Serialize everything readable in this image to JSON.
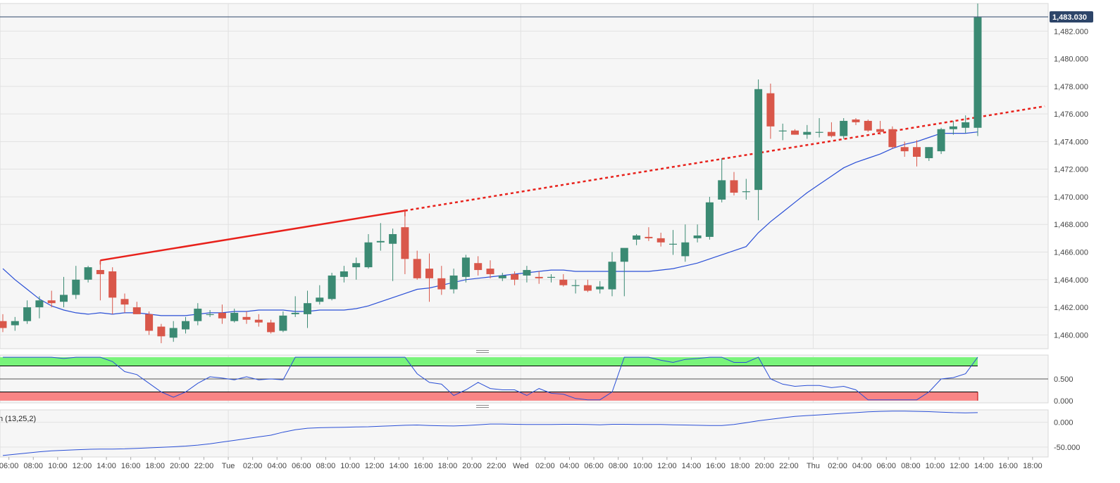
{
  "chart_data": [
    {
      "type": "candlestick",
      "panel": "price",
      "ylim": [
        1459,
        1484
      ],
      "y_ticks": [
        1460,
        1462,
        1464,
        1466,
        1468,
        1470,
        1472,
        1474,
        1476,
        1478,
        1480,
        1482
      ],
      "y_tick_labels": [
        "1,460.000",
        "1,462.000",
        "1,464.000",
        "1,466.000",
        "1,468.000",
        "1,470.000",
        "1,472.000",
        "1,474.000",
        "1,476.000",
        "1,478.000",
        "1,480.000",
        "1,482.000"
      ],
      "current_price": 1483.03,
      "current_price_label": "1,483.030",
      "grid": true,
      "candles": [
        {
          "t": 0,
          "o": 1461.0,
          "h": 1461.5,
          "l": 1460.2,
          "c": 1460.5
        },
        {
          "t": 1,
          "o": 1460.7,
          "h": 1461.3,
          "l": 1460.3,
          "c": 1461.0
        },
        {
          "t": 2,
          "o": 1461.0,
          "h": 1462.5,
          "l": 1460.8,
          "c": 1462.0
        },
        {
          "t": 3,
          "o": 1462.0,
          "h": 1462.8,
          "l": 1461.2,
          "c": 1462.5
        },
        {
          "t": 4,
          "o": 1462.5,
          "h": 1463.2,
          "l": 1462.0,
          "c": 1462.3
        },
        {
          "t": 5,
          "o": 1462.4,
          "h": 1464.2,
          "l": 1462.0,
          "c": 1462.9
        },
        {
          "t": 6,
          "o": 1462.9,
          "h": 1465.0,
          "l": 1462.6,
          "c": 1464.0
        },
        {
          "t": 7,
          "o": 1464.0,
          "h": 1465.0,
          "l": 1463.8,
          "c": 1464.9
        },
        {
          "t": 8,
          "o": 1464.7,
          "h": 1465.4,
          "l": 1462.5,
          "c": 1464.4
        },
        {
          "t": 9,
          "o": 1464.6,
          "h": 1464.9,
          "l": 1461.5,
          "c": 1462.7
        },
        {
          "t": 10,
          "o": 1462.6,
          "h": 1463.0,
          "l": 1461.6,
          "c": 1462.2
        },
        {
          "t": 11,
          "o": 1462.0,
          "h": 1462.4,
          "l": 1461.5,
          "c": 1461.5
        },
        {
          "t": 12,
          "o": 1461.5,
          "h": 1461.7,
          "l": 1460.0,
          "c": 1460.3
        },
        {
          "t": 13,
          "o": 1460.6,
          "h": 1460.8,
          "l": 1459.4,
          "c": 1459.9
        },
        {
          "t": 14,
          "o": 1459.8,
          "h": 1461.0,
          "l": 1459.5,
          "c": 1460.5
        },
        {
          "t": 15,
          "o": 1460.4,
          "h": 1461.3,
          "l": 1460.1,
          "c": 1461.0
        },
        {
          "t": 16,
          "o": 1461.0,
          "h": 1462.3,
          "l": 1460.7,
          "c": 1461.9
        },
        {
          "t": 17,
          "o": 1461.5,
          "h": 1461.8,
          "l": 1461.3,
          "c": 1461.5
        },
        {
          "t": 18,
          "o": 1461.6,
          "h": 1462.2,
          "l": 1460.8,
          "c": 1461.2
        },
        {
          "t": 19,
          "o": 1461.0,
          "h": 1461.9,
          "l": 1460.9,
          "c": 1461.6
        },
        {
          "t": 20,
          "o": 1461.3,
          "h": 1461.7,
          "l": 1460.8,
          "c": 1461.1
        },
        {
          "t": 21,
          "o": 1461.1,
          "h": 1461.5,
          "l": 1460.6,
          "c": 1460.9
        },
        {
          "t": 22,
          "o": 1460.9,
          "h": 1461.1,
          "l": 1460.1,
          "c": 1460.2
        },
        {
          "t": 23,
          "o": 1460.3,
          "h": 1461.7,
          "l": 1460.2,
          "c": 1461.4
        },
        {
          "t": 24,
          "o": 1461.5,
          "h": 1462.8,
          "l": 1461.3,
          "c": 1461.6
        },
        {
          "t": 25,
          "o": 1461.5,
          "h": 1463.2,
          "l": 1460.5,
          "c": 1462.3
        },
        {
          "t": 26,
          "o": 1462.4,
          "h": 1463.6,
          "l": 1462.2,
          "c": 1462.7
        },
        {
          "t": 27,
          "o": 1462.6,
          "h": 1464.5,
          "l": 1462.5,
          "c": 1464.3
        },
        {
          "t": 28,
          "o": 1464.2,
          "h": 1465.0,
          "l": 1463.8,
          "c": 1464.6
        },
        {
          "t": 29,
          "o": 1464.9,
          "h": 1465.6,
          "l": 1464.0,
          "c": 1465.2
        },
        {
          "t": 30,
          "o": 1464.9,
          "h": 1467.3,
          "l": 1464.8,
          "c": 1466.7
        },
        {
          "t": 31,
          "o": 1466.7,
          "h": 1468.1,
          "l": 1466.1,
          "c": 1466.8
        },
        {
          "t": 32,
          "o": 1466.6,
          "h": 1467.7,
          "l": 1463.9,
          "c": 1467.3
        },
        {
          "t": 33,
          "o": 1467.8,
          "h": 1469.1,
          "l": 1464.4,
          "c": 1465.5
        },
        {
          "t": 34,
          "o": 1465.5,
          "h": 1466.1,
          "l": 1464.0,
          "c": 1464.1
        },
        {
          "t": 35,
          "o": 1464.8,
          "h": 1465.9,
          "l": 1462.4,
          "c": 1464.1
        },
        {
          "t": 36,
          "o": 1464.1,
          "h": 1465.0,
          "l": 1462.9,
          "c": 1463.3
        },
        {
          "t": 37,
          "o": 1463.3,
          "h": 1464.8,
          "l": 1463.0,
          "c": 1464.3
        },
        {
          "t": 38,
          "o": 1464.2,
          "h": 1465.8,
          "l": 1463.8,
          "c": 1465.6
        },
        {
          "t": 39,
          "o": 1465.2,
          "h": 1465.7,
          "l": 1464.3,
          "c": 1464.7
        },
        {
          "t": 40,
          "o": 1464.8,
          "h": 1465.4,
          "l": 1464.1,
          "c": 1464.4
        },
        {
          "t": 41,
          "o": 1464.1,
          "h": 1464.5,
          "l": 1463.9,
          "c": 1464.3
        },
        {
          "t": 42,
          "o": 1464.4,
          "h": 1464.6,
          "l": 1463.6,
          "c": 1464.0
        },
        {
          "t": 43,
          "o": 1464.3,
          "h": 1465.0,
          "l": 1463.8,
          "c": 1464.7
        },
        {
          "t": 44,
          "o": 1464.2,
          "h": 1464.6,
          "l": 1463.7,
          "c": 1464.1
        },
        {
          "t": 45,
          "o": 1464.2,
          "h": 1464.4,
          "l": 1463.8,
          "c": 1464.2
        },
        {
          "t": 46,
          "o": 1464.0,
          "h": 1464.4,
          "l": 1463.5,
          "c": 1463.6
        },
        {
          "t": 47,
          "o": 1463.6,
          "h": 1464.0,
          "l": 1463.0,
          "c": 1463.6
        },
        {
          "t": 48,
          "o": 1463.6,
          "h": 1464.0,
          "l": 1463.1,
          "c": 1463.2
        },
        {
          "t": 49,
          "o": 1463.3,
          "h": 1463.9,
          "l": 1463.0,
          "c": 1463.5
        },
        {
          "t": 50,
          "o": 1463.3,
          "h": 1466.0,
          "l": 1462.8,
          "c": 1465.3
        },
        {
          "t": 51,
          "o": 1465.3,
          "h": 1466.1,
          "l": 1462.8,
          "c": 1466.3
        },
        {
          "t": 52,
          "o": 1466.9,
          "h": 1467.3,
          "l": 1466.5,
          "c": 1467.2
        },
        {
          "t": 53,
          "o": 1467.1,
          "h": 1467.8,
          "l": 1466.8,
          "c": 1467.0
        },
        {
          "t": 54,
          "o": 1467.0,
          "h": 1467.4,
          "l": 1466.4,
          "c": 1466.7
        },
        {
          "t": 55,
          "o": 1466.6,
          "h": 1467.6,
          "l": 1465.8,
          "c": 1466.6
        },
        {
          "t": 56,
          "o": 1465.7,
          "h": 1468.0,
          "l": 1465.3,
          "c": 1466.7
        },
        {
          "t": 57,
          "o": 1467.0,
          "h": 1468.0,
          "l": 1466.7,
          "c": 1467.2
        },
        {
          "t": 58,
          "o": 1467.1,
          "h": 1470.0,
          "l": 1466.9,
          "c": 1469.6
        },
        {
          "t": 59,
          "o": 1469.8,
          "h": 1472.8,
          "l": 1469.6,
          "c": 1471.2
        },
        {
          "t": 60,
          "o": 1471.2,
          "h": 1471.8,
          "l": 1470.1,
          "c": 1470.3
        },
        {
          "t": 61,
          "o": 1470.4,
          "h": 1471.3,
          "l": 1469.8,
          "c": 1470.4
        },
        {
          "t": 62,
          "o": 1470.5,
          "h": 1478.5,
          "l": 1468.3,
          "c": 1477.8
        },
        {
          "t": 63,
          "o": 1477.5,
          "h": 1478.2,
          "l": 1474.2,
          "c": 1475.1
        },
        {
          "t": 64,
          "o": 1474.8,
          "h": 1475.3,
          "l": 1474.1,
          "c": 1474.8
        },
        {
          "t": 65,
          "o": 1474.8,
          "h": 1474.9,
          "l": 1474.5,
          "c": 1474.5
        },
        {
          "t": 66,
          "o": 1474.5,
          "h": 1475.2,
          "l": 1474.2,
          "c": 1474.7
        },
        {
          "t": 67,
          "o": 1474.7,
          "h": 1475.7,
          "l": 1474.3,
          "c": 1474.7
        },
        {
          "t": 68,
          "o": 1474.7,
          "h": 1475.4,
          "l": 1474.3,
          "c": 1474.4
        },
        {
          "t": 69,
          "o": 1474.4,
          "h": 1475.7,
          "l": 1474.2,
          "c": 1475.5
        },
        {
          "t": 70,
          "o": 1475.6,
          "h": 1475.7,
          "l": 1475.2,
          "c": 1475.4
        },
        {
          "t": 71,
          "o": 1475.5,
          "h": 1475.6,
          "l": 1474.7,
          "c": 1474.8
        },
        {
          "t": 72,
          "o": 1474.9,
          "h": 1475.5,
          "l": 1474.5,
          "c": 1474.7
        },
        {
          "t": 73,
          "o": 1474.9,
          "h": 1475.1,
          "l": 1473.5,
          "c": 1473.6
        },
        {
          "t": 74,
          "o": 1473.6,
          "h": 1474.0,
          "l": 1472.9,
          "c": 1473.3
        },
        {
          "t": 75,
          "o": 1473.6,
          "h": 1474.1,
          "l": 1472.2,
          "c": 1472.9
        },
        {
          "t": 76,
          "o": 1472.8,
          "h": 1473.6,
          "l": 1472.6,
          "c": 1473.6
        },
        {
          "t": 77,
          "o": 1473.3,
          "h": 1475.0,
          "l": 1473.1,
          "c": 1474.9
        },
        {
          "t": 78,
          "o": 1474.9,
          "h": 1475.5,
          "l": 1474.5,
          "c": 1475.1
        },
        {
          "t": 79,
          "o": 1475.0,
          "h": 1475.9,
          "l": 1474.6,
          "c": 1475.4
        },
        {
          "t": 80,
          "o": 1475.0,
          "h": 1484.0,
          "l": 1474.4,
          "c": 1483.0
        }
      ],
      "moving_average": [
        1464.8,
        1464.0,
        1463.3,
        1462.6,
        1462.1,
        1461.8,
        1461.6,
        1461.5,
        1461.6,
        1461.5,
        1461.6,
        1461.6,
        1461.5,
        1461.4,
        1461.4,
        1461.4,
        1461.5,
        1461.6,
        1461.6,
        1461.7,
        1461.7,
        1461.8,
        1461.8,
        1461.8,
        1461.7,
        1461.7,
        1461.8,
        1461.8,
        1461.8,
        1461.9,
        1462.1,
        1462.4,
        1462.7,
        1463.0,
        1463.3,
        1463.4,
        1463.6,
        1463.8,
        1464.0,
        1464.1,
        1464.2,
        1464.3,
        1464.4,
        1464.5,
        1464.6,
        1464.7,
        1464.7,
        1464.6,
        1464.6,
        1464.6,
        1464.6,
        1464.6,
        1464.6,
        1464.6,
        1464.7,
        1464.8,
        1465.0,
        1465.2,
        1465.5,
        1465.8,
        1466.1,
        1466.4,
        1467.4,
        1468.2,
        1468.9,
        1469.6,
        1470.3,
        1470.9,
        1471.5,
        1472.1,
        1472.5,
        1472.8,
        1473.1,
        1473.5,
        1473.8,
        1474.0,
        1474.3,
        1474.6,
        1474.6,
        1474.6,
        1474.7
      ],
      "trendline": {
        "x1": 8,
        "y1": 1465.4,
        "x2": 33,
        "y2": 1469.0,
        "extended_to_x": 85.5
      },
      "x_tick_labels": [
        {
          "t": 0.5,
          "label": "06:00"
        },
        {
          "t": 2.5,
          "label": "08:00"
        },
        {
          "t": 4.5,
          "label": "10:00"
        },
        {
          "t": 6.5,
          "label": "12:00"
        },
        {
          "t": 8.5,
          "label": "14:00"
        },
        {
          "t": 10.5,
          "label": "16:00"
        },
        {
          "t": 12.5,
          "label": "18:00"
        },
        {
          "t": 14.5,
          "label": "20:00"
        },
        {
          "t": 16.5,
          "label": "22:00"
        },
        {
          "t": 18.5,
          "label": "Tue"
        },
        {
          "t": 20.5,
          "label": "02:00"
        },
        {
          "t": 22.5,
          "label": "04:00"
        },
        {
          "t": 24.5,
          "label": "06:00"
        },
        {
          "t": 26.5,
          "label": "08:00"
        },
        {
          "t": 28.5,
          "label": "10:00"
        },
        {
          "t": 30.5,
          "label": "12:00"
        },
        {
          "t": 32.5,
          "label": "14:00"
        },
        {
          "t": 34.5,
          "label": "16:00"
        },
        {
          "t": 36.5,
          "label": "18:00"
        },
        {
          "t": 38.5,
          "label": "20:00"
        },
        {
          "t": 40.5,
          "label": "22:00"
        },
        {
          "t": 42.5,
          "label": "Wed"
        },
        {
          "t": 44.5,
          "label": "02:00"
        },
        {
          "t": 46.5,
          "label": "04:00"
        },
        {
          "t": 48.5,
          "label": "06:00"
        },
        {
          "t": 50.5,
          "label": "08:00"
        },
        {
          "t": 52.5,
          "label": "10:00"
        },
        {
          "t": 54.5,
          "label": "12:00"
        },
        {
          "t": 56.5,
          "label": "14:00"
        },
        {
          "t": 58.5,
          "label": "16:00"
        },
        {
          "t": 60.5,
          "label": "18:00"
        },
        {
          "t": 62.5,
          "label": "20:00"
        },
        {
          "t": 64.5,
          "label": "22:00"
        },
        {
          "t": 66.5,
          "label": "Thu"
        },
        {
          "t": 68.5,
          "label": "02:00"
        },
        {
          "t": 70.5,
          "label": "04:00"
        },
        {
          "t": 72.5,
          "label": "06:00"
        },
        {
          "t": 74.5,
          "label": "08:00"
        },
        {
          "t": 76.5,
          "label": "10:00"
        },
        {
          "t": 78.5,
          "label": "12:00"
        },
        {
          "t": 80.5,
          "label": "14:00"
        },
        {
          "t": 82.5,
          "label": "16:00"
        },
        {
          "t": 84.5,
          "label": "18:00"
        }
      ],
      "day_separators": [
        18.5,
        42.5,
        66.5
      ],
      "colors": {
        "bullish": "#3b8a73",
        "bearish": "#d9574a",
        "moving_average": "#2a4fd6",
        "trendline": "#e8211b",
        "price_line": "#2d4569"
      }
    },
    {
      "type": "line",
      "panel": "oscillator",
      "ylim": [
        -0.05,
        1.05
      ],
      "y_ticks": [
        0,
        0.5
      ],
      "y_tick_labels": [
        "0.000",
        "0.500"
      ],
      "overbought_zone": [
        0.8,
        1.0
      ],
      "oversold_zone": [
        0.0,
        0.2
      ],
      "midline": 0.5,
      "values": [
        1.0,
        1.0,
        1.0,
        1.0,
        1.0,
        0.97,
        1.0,
        1.0,
        1.0,
        0.9,
        0.67,
        0.6,
        0.4,
        0.2,
        0.08,
        0.2,
        0.4,
        0.55,
        0.52,
        0.48,
        0.55,
        0.48,
        0.5,
        0.48,
        1.0,
        1.0,
        1.0,
        1.0,
        1.0,
        1.0,
        1.0,
        1.0,
        1.0,
        1.0,
        0.62,
        0.42,
        0.38,
        0.12,
        0.25,
        0.42,
        0.28,
        0.25,
        0.25,
        0.12,
        0.28,
        0.17,
        0.15,
        0.05,
        0.02,
        0.02,
        0.2,
        1.0,
        1.0,
        1.0,
        0.93,
        0.88,
        0.95,
        0.97,
        1.0,
        1.0,
        0.88,
        0.88,
        1.0,
        0.5,
        0.38,
        0.33,
        0.35,
        0.35,
        0.3,
        0.33,
        0.25,
        0.02,
        0.02,
        0.02,
        0.02,
        0.02,
        0.2,
        0.5,
        0.53,
        0.62,
        1.0
      ],
      "colors": {
        "line": "#2a4fd6",
        "overbought": "#79f47b",
        "oversold": "#f98585"
      }
    },
    {
      "type": "line",
      "panel": "macd",
      "label": "n (13,25,2)",
      "ylim": [
        -70,
        25
      ],
      "y_ticks": [
        -50,
        0
      ],
      "y_tick_labels": [
        "-50.000",
        "0.000"
      ],
      "values": [
        -67,
        -64.5,
        -62,
        -59.5,
        -57.5,
        -56.5,
        -55.5,
        -54.5,
        -54,
        -54,
        -53.5,
        -52.5,
        -51.5,
        -50.5,
        -49.5,
        -48,
        -46,
        -43.5,
        -40,
        -36.5,
        -33,
        -29.5,
        -26,
        -20,
        -15,
        -12,
        -11,
        -10.5,
        -10,
        -9.5,
        -9,
        -8,
        -7,
        -6,
        -5.5,
        -6.5,
        -7,
        -7.5,
        -6.5,
        -5,
        -3.5,
        -3.5,
        -4,
        -4.5,
        -4.5,
        -4.5,
        -4,
        -4,
        -4.5,
        -5,
        -4,
        -4,
        -4.5,
        -4.5,
        -4.5,
        -5,
        -5.5,
        -6,
        -6.5,
        -6.5,
        -4.5,
        -1,
        3,
        6,
        9,
        12,
        13.5,
        15,
        16.5,
        18,
        19.5,
        21,
        22,
        22.5,
        22.5,
        22,
        21.5,
        20.5,
        19.5,
        19,
        19.5
      ],
      "colors": {
        "line": "#2a4fd6"
      }
    }
  ]
}
